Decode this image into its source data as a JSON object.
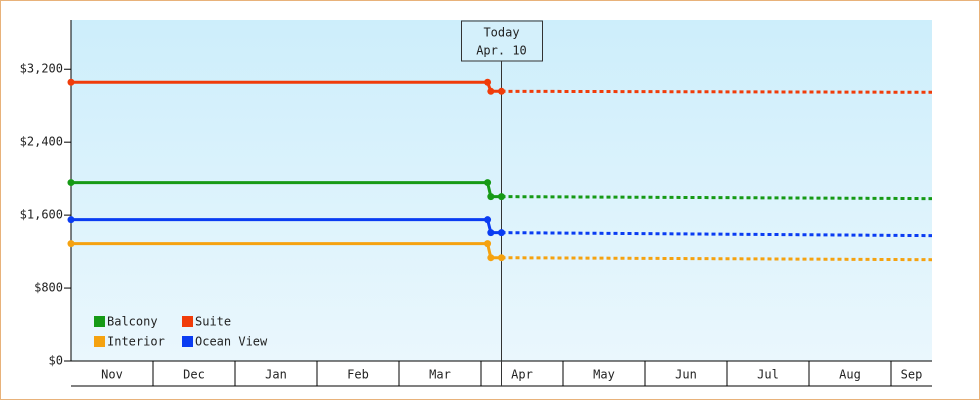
{
  "chart_data": {
    "type": "line",
    "categories": [
      "Nov",
      "Dec",
      "Jan",
      "Feb",
      "Mar",
      "Apr",
      "May",
      "Jun",
      "Jul",
      "Aug",
      "Sep"
    ],
    "xlim": [
      0,
      10.5
    ],
    "ylim": [
      0,
      3740
    ],
    "yticks": [
      {
        "value": 0,
        "label": "$0"
      },
      {
        "value": 800,
        "label": "$800"
      },
      {
        "value": 1600,
        "label": "$1,600"
      },
      {
        "value": 2400,
        "label": "$2,400"
      },
      {
        "value": 3200,
        "label": "$3,200"
      }
    ],
    "today": {
      "label": "Today",
      "date": "Apr. 10",
      "x": 5.25
    },
    "legend": "lower-left",
    "series": [
      {
        "name": "Balcony",
        "color": "#169a16",
        "x": [
          0,
          5.08,
          5.12,
          5.25,
          10.5
        ],
        "values": [
          1957,
          1957,
          1803,
          1803,
          1781
        ]
      },
      {
        "name": "Suite",
        "color": "#f03c0a",
        "x": [
          0,
          5.08,
          5.12,
          5.25,
          10.5
        ],
        "values": [
          3057,
          3057,
          2958,
          2958,
          2947
        ]
      },
      {
        "name": "Interior",
        "color": "#f5a210",
        "x": [
          0,
          5.08,
          5.12,
          5.25,
          10.5
        ],
        "values": [
          1287,
          1287,
          1133,
          1133,
          1111
        ]
      },
      {
        "name": "Ocean View",
        "color": "#0a3cf2",
        "x": [
          0,
          5.08,
          5.12,
          5.25,
          10.5
        ],
        "values": [
          1550,
          1550,
          1408,
          1408,
          1375
        ]
      }
    ]
  }
}
